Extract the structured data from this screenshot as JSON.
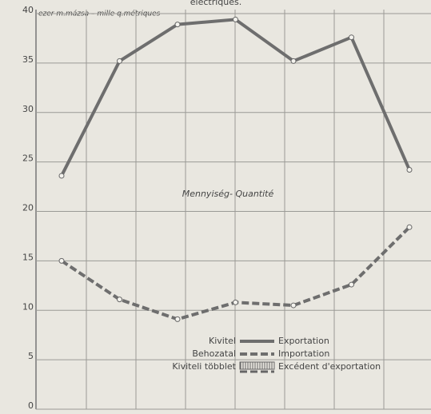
{
  "chart_data": {
    "type": "line",
    "title": "électriques.",
    "y_label": "ezer m.mázsa  –  mille q.métriques",
    "annotation": "Mennyiség- Quantité",
    "categories": [
      null,
      null,
      null,
      null,
      null,
      null,
      null
    ],
    "series": [
      {
        "name": "Kivitel",
        "name_alt": "Exportation",
        "color": "#6e6e6e",
        "dash": false,
        "values": [
          23.6,
          35.2,
          38.9,
          39.4,
          35.2,
          37.6,
          24.2
        ]
      },
      {
        "name": "Behozatal",
        "name_alt": "Importation",
        "color": "#6e6e6e",
        "dash": true,
        "values": [
          15.0,
          11.1,
          9.1,
          10.8,
          10.5,
          12.6,
          18.4
        ]
      }
    ],
    "legend_extra": {
      "name": "Kiviteli többlet",
      "name_alt": "Excédent d'exportation"
    },
    "ylim": [
      0,
      40
    ],
    "yticks": [
      0,
      5,
      10,
      15,
      20,
      25,
      30,
      35,
      40
    ],
    "grid": true
  }
}
